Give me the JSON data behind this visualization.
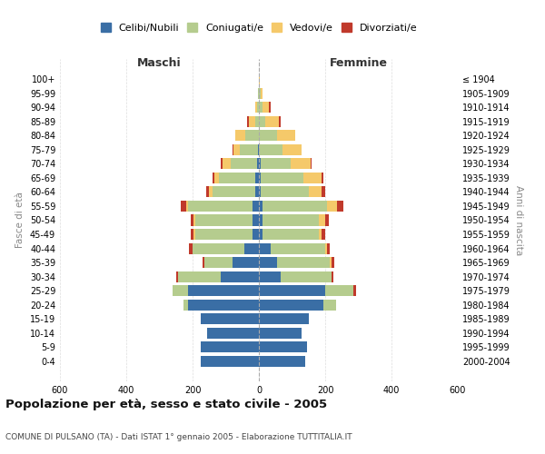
{
  "age_groups": [
    "0-4",
    "5-9",
    "10-14",
    "15-19",
    "20-24",
    "25-29",
    "30-34",
    "35-39",
    "40-44",
    "45-49",
    "50-54",
    "55-59",
    "60-64",
    "65-69",
    "70-74",
    "75-79",
    "80-84",
    "85-89",
    "90-94",
    "95-99",
    "100+"
  ],
  "birth_years": [
    "2000-2004",
    "1995-1999",
    "1990-1994",
    "1985-1989",
    "1980-1984",
    "1975-1979",
    "1970-1974",
    "1965-1969",
    "1960-1964",
    "1955-1959",
    "1950-1954",
    "1945-1949",
    "1940-1944",
    "1935-1939",
    "1930-1934",
    "1925-1929",
    "1920-1924",
    "1915-1919",
    "1910-1914",
    "1905-1909",
    "≤ 1904"
  ],
  "male": {
    "celibi": [
      175,
      175,
      155,
      175,
      215,
      215,
      115,
      80,
      45,
      18,
      18,
      18,
      10,
      10,
      5,
      2,
      0,
      0,
      0,
      0,
      0
    ],
    "coniugati": [
      0,
      0,
      0,
      0,
      12,
      45,
      130,
      85,
      155,
      175,
      175,
      195,
      130,
      110,
      80,
      55,
      40,
      10,
      5,
      2,
      0
    ],
    "vedovi": [
      0,
      0,
      0,
      0,
      0,
      0,
      0,
      0,
      0,
      5,
      5,
      5,
      10,
      15,
      25,
      20,
      30,
      20,
      5,
      2,
      0
    ],
    "divorziati": [
      0,
      0,
      0,
      0,
      0,
      0,
      5,
      5,
      10,
      8,
      8,
      18,
      8,
      5,
      5,
      2,
      0,
      5,
      0,
      0,
      0
    ]
  },
  "female": {
    "nubili": [
      140,
      145,
      130,
      150,
      195,
      200,
      65,
      55,
      35,
      10,
      10,
      10,
      5,
      5,
      5,
      0,
      0,
      0,
      0,
      0,
      0
    ],
    "coniugate": [
      0,
      0,
      0,
      0,
      38,
      85,
      155,
      160,
      165,
      170,
      170,
      195,
      145,
      130,
      90,
      70,
      55,
      20,
      10,
      5,
      0
    ],
    "vedove": [
      0,
      0,
      0,
      0,
      0,
      0,
      0,
      5,
      5,
      10,
      20,
      30,
      40,
      55,
      60,
      60,
      55,
      40,
      20,
      5,
      2
    ],
    "divorziate": [
      0,
      0,
      0,
      0,
      0,
      8,
      5,
      8,
      10,
      10,
      10,
      20,
      10,
      5,
      5,
      0,
      0,
      5,
      5,
      0,
      0
    ]
  },
  "colors": {
    "celibi": "#3a6ea5",
    "coniugati": "#b5cc8e",
    "vedovi": "#f5c96a",
    "divorziati": "#c0392b"
  },
  "title": "Popolazione per età, sesso e stato civile - 2005",
  "subtitle": "COMUNE DI PULSANO (TA) - Dati ISTAT 1° gennaio 2005 - Elaborazione TUTTITALIA.IT",
  "xlabel_left": "Maschi",
  "xlabel_right": "Femmine",
  "ylabel_left": "Fasce di età",
  "ylabel_right": "Anni di nascita",
  "xlim": 600,
  "legend_labels": [
    "Celibi/Nubili",
    "Coniugati/e",
    "Vedovi/e",
    "Divorziati/e"
  ],
  "background_color": "#ffffff"
}
